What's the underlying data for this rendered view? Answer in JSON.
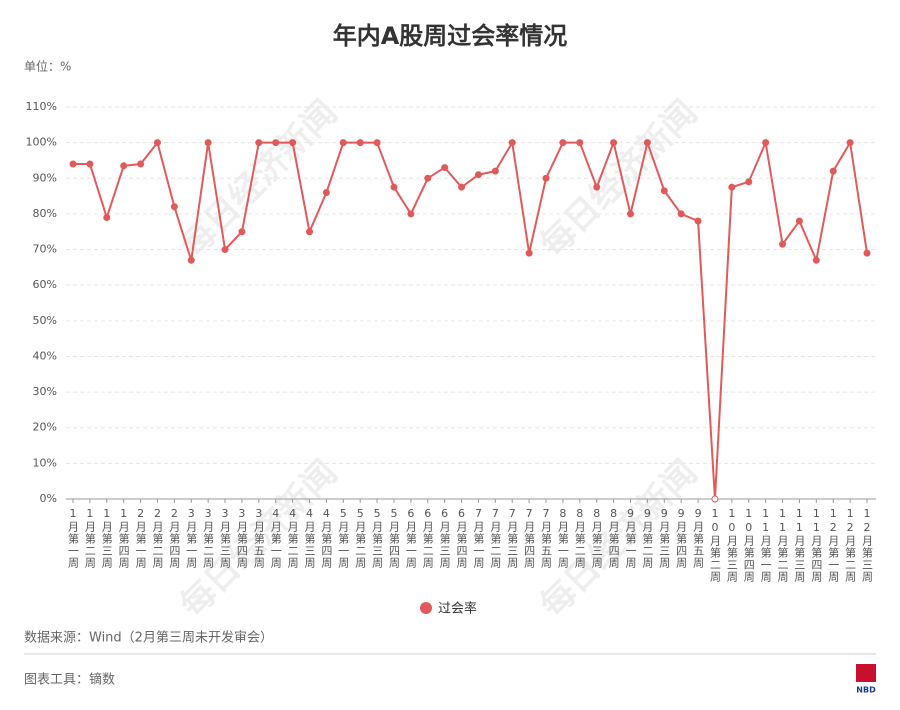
{
  "chart_data": {
    "type": "line",
    "title": "年内A股周过会率情况",
    "unit_label": "单位：%",
    "categories": [
      "1月第一周",
      "1月第二周",
      "1月第三周",
      "1月第四周",
      "2月第一周",
      "2月第二周",
      "2月第四周",
      "3月第一周",
      "3月第二周",
      "3月第三周",
      "3月第四周",
      "3月第五周",
      "4月第一周",
      "4月第二周",
      "4月第三周",
      "4月第四周",
      "5月第一周",
      "5月第二周",
      "5月第三周",
      "5月第四周",
      "6月第一周",
      "6月第二周",
      "6月第三周",
      "6月第四周",
      "7月第一周",
      "7月第二周",
      "7月第三周",
      "7月第四周",
      "7月第五周",
      "8月第一周",
      "8月第二周",
      "8月第三周",
      "8月第四周",
      "9月第一周",
      "9月第二周",
      "9月第三周",
      "9月第四周",
      "9月第五周",
      "10月第二周",
      "10月第三周",
      "10月第四周",
      "11月第一周",
      "11月第二周",
      "11月第三周",
      "11月第四周",
      "12月第一周",
      "12月第二周",
      "12月第三周"
    ],
    "series": [
      {
        "name": "过会率",
        "color": "#e05a5a",
        "values": [
          94,
          94,
          79,
          93.5,
          94,
          100,
          82,
          67,
          100,
          70,
          75,
          100,
          100,
          100,
          75,
          86,
          100,
          100,
          100,
          87.5,
          80,
          90,
          93,
          87.5,
          91,
          92,
          100,
          69,
          90,
          100,
          100,
          87.5,
          100,
          80,
          100,
          86.5,
          80,
          78,
          0,
          87.5,
          89,
          100,
          71.5,
          78,
          67,
          92,
          100,
          69
        ]
      }
    ],
    "ylim": [
      0,
      110
    ],
    "yticks": [
      {
        "value": 0,
        "label": "0%"
      },
      {
        "value": 10,
        "label": "10%"
      },
      {
        "value": 20,
        "label": "20%"
      },
      {
        "value": 30,
        "label": "30%"
      },
      {
        "value": 40,
        "label": "40%"
      },
      {
        "value": 50,
        "label": "50%"
      },
      {
        "value": 60,
        "label": "60%"
      },
      {
        "value": 70,
        "label": "70%"
      },
      {
        "value": 80,
        "label": "80%"
      },
      {
        "value": 90,
        "label": "90%"
      },
      {
        "value": 100,
        "label": "100%"
      },
      {
        "value": 110,
        "label": "110%"
      }
    ],
    "grid": true,
    "legend": "bottom",
    "source": "数据来源：Wind（2月第三周未开发审会）",
    "tool": "图表工具：镝数",
    "watermark": "每日经济新闻",
    "logo": "NBD"
  }
}
